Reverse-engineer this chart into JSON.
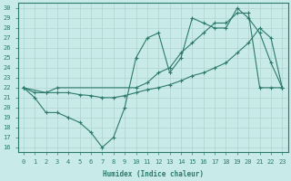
{
  "xlabel": "Humidex (Indice chaleur)",
  "ylabel": "",
  "bg_color": "#c8eae8",
  "line_color": "#2d7a6a",
  "grid_color": "#b0d4d0",
  "xlim": [
    -0.5,
    23.5
  ],
  "ylim": [
    15.5,
    30.5
  ],
  "xticks": [
    0,
    1,
    2,
    3,
    4,
    5,
    6,
    7,
    8,
    9,
    10,
    11,
    12,
    13,
    14,
    15,
    16,
    17,
    18,
    19,
    20,
    21,
    22,
    23
  ],
  "yticks": [
    16,
    17,
    18,
    19,
    20,
    21,
    22,
    23,
    24,
    25,
    26,
    27,
    28,
    29,
    30
  ],
  "line1_x": [
    0,
    1,
    2,
    3,
    4,
    5,
    6,
    7,
    8,
    9,
    10,
    11,
    12,
    13,
    14,
    15,
    16,
    17,
    18,
    19,
    20,
    21,
    22,
    23
  ],
  "line1_y": [
    22,
    21,
    19.5,
    19.5,
    19,
    18.5,
    17.5,
    16,
    17,
    20,
    25,
    27,
    27.5,
    23.5,
    25,
    29,
    28.5,
    28,
    28,
    30,
    29,
    27.5,
    24.5,
    22
  ],
  "line2_x": [
    0,
    2,
    3,
    10,
    11,
    12,
    13,
    14,
    15,
    16,
    17,
    18,
    19,
    20,
    21,
    22,
    23
  ],
  "line2_y": [
    22,
    21.5,
    22,
    22,
    22.5,
    23.5,
    24,
    25.5,
    26.5,
    27.5,
    28.5,
    28.5,
    29.5,
    29.5,
    22,
    22,
    22
  ],
  "line3_x": [
    0,
    1,
    2,
    3,
    4,
    5,
    6,
    7,
    8,
    9,
    10,
    11,
    12,
    13,
    14,
    15,
    16,
    17,
    18,
    19,
    20,
    21,
    22,
    23
  ],
  "line3_y": [
    22,
    21.5,
    21.5,
    21.5,
    21.5,
    21.3,
    21.2,
    21.0,
    21.0,
    21.2,
    21.5,
    21.8,
    22.0,
    22.3,
    22.7,
    23.2,
    23.5,
    24.0,
    24.5,
    25.5,
    26.5,
    28.0,
    27.0,
    22
  ]
}
